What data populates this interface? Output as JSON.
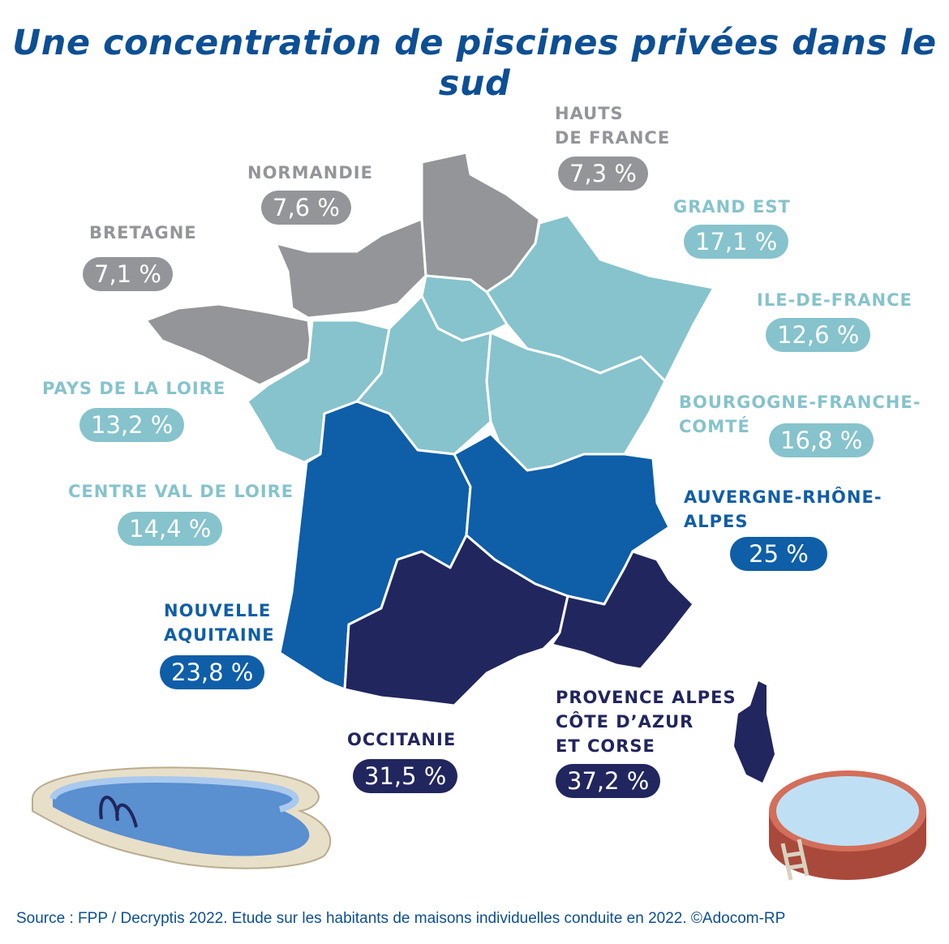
{
  "title": "Une concentration de piscines privées dans le sud",
  "colors": {
    "grey": "#939598",
    "light_blue": "#86c3cc",
    "mid_blue": "#0f5ea8",
    "dark_blue": "#21265e",
    "title": "#0d4f94"
  },
  "regions": {
    "hauts_de_france": {
      "name_line1": "HAUTS",
      "name_line2": "DE FRANCE",
      "value": "7,3 %"
    },
    "normandie": {
      "name": "NORMANDIE",
      "value": "7,6 %"
    },
    "bretagne": {
      "name": "BRETAGNE",
      "value": "7,1 %"
    },
    "grand_est": {
      "name": "GRAND EST",
      "value": "17,1 %"
    },
    "ile_de_france": {
      "name": "ILE-DE-FRANCE",
      "value": "12,6 %"
    },
    "bourgogne": {
      "name_line1": "BOURGOGNE-FRANCHE-",
      "name_line2": "COMTÉ",
      "value": "16,8 %"
    },
    "pays_de_la_loire": {
      "name": "PAYS DE LA LOIRE",
      "value": "13,2 %"
    },
    "centre": {
      "name": "CENTRE VAL DE LOIRE",
      "value": "14,4 %"
    },
    "auvergne": {
      "name_line1": "AUVERGNE-RHÔNE-",
      "name_line2": "ALPES",
      "value": "25 %"
    },
    "nouvelle_aquitaine": {
      "name_line1": "NOUVELLE",
      "name_line2": "AQUITAINE",
      "value": "23,8 %"
    },
    "occitanie": {
      "name": "OCCITANIE",
      "value": "31,5 %"
    },
    "paca": {
      "name_line1": "PROVENCE ALPES",
      "name_line2": "CÔTE D’AZUR",
      "name_line3": "ET CORSE",
      "value": "37,2 %"
    }
  },
  "source": "Source :  FPP / Decryptis 2022. Etude sur les habitants de maisons individuelles  conduite en 2022. ©Adocom-RP"
}
